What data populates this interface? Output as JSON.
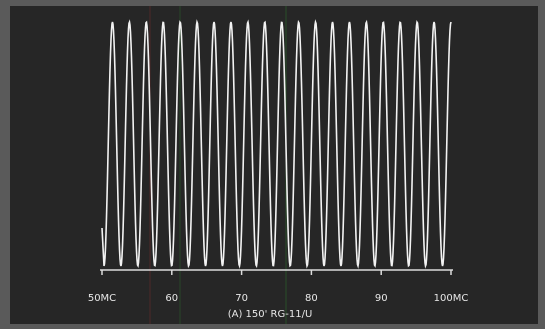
{
  "chart_data": {
    "type": "line",
    "title": "(A) 150' RG-11/U",
    "xlim": [
      50,
      100
    ],
    "xticks": [
      {
        "value": 50,
        "label": "50MC"
      },
      60,
      70,
      80,
      90,
      {
        "value": 100,
        "label": "100MC"
      }
    ]
  }
}
